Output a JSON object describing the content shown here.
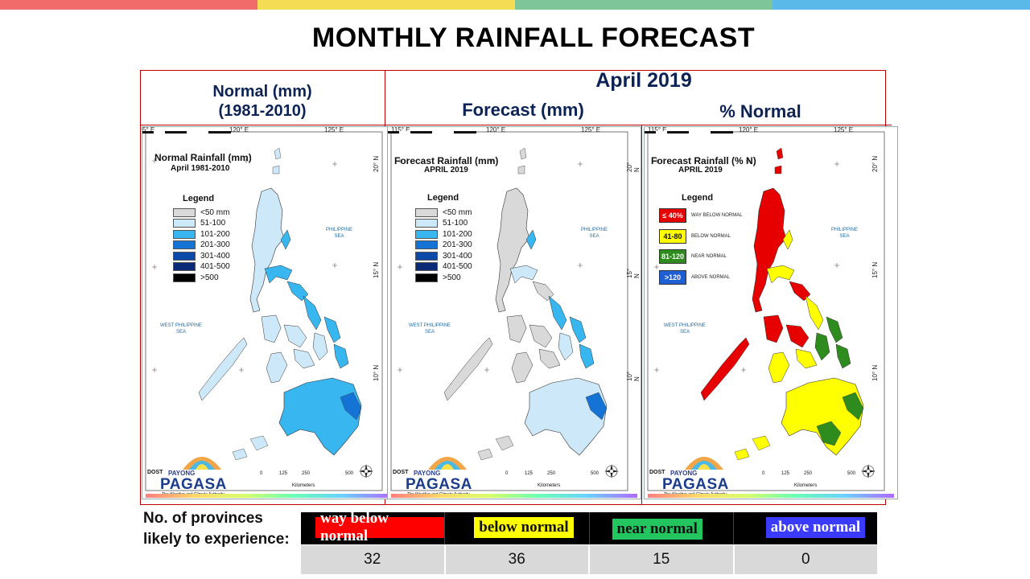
{
  "top_bar_colors": [
    "#f26b6b",
    "#f5dc55",
    "#7fc59a",
    "#5ab9e8"
  ],
  "title": "MONTHLY RAINFALL FORECAST",
  "headers": {
    "normal_line1": "Normal (mm)",
    "normal_line2": "(1981-2010)",
    "month": "April 2019",
    "forecast": "Forecast (mm)",
    "percent_normal": "% Normal"
  },
  "grid_ticks": {
    "lon": [
      "115° E",
      "120° E",
      "125° E"
    ],
    "lat": [
      "20° N",
      "15° N",
      "10° N"
    ]
  },
  "seas": {
    "philippine_sea_1": "PHILIPPINE",
    "philippine_sea_2": "SEA",
    "west_philippine_sea_1": "WEST PHILIPPINE",
    "west_philippine_sea_2": "SEA"
  },
  "maps": {
    "normal": {
      "title": "Normal Rainfall (mm)",
      "subtitle": "April 1981-2010",
      "first_lon_tick": "5° E"
    },
    "forecast": {
      "title": "Forecast Rainfall (mm)",
      "subtitle": "APRIL 2019"
    },
    "percent": {
      "title": "Forecast Rainfall (% N)",
      "subtitle": "APRIL 2019"
    }
  },
  "legend": {
    "title": "Legend",
    "items": [
      {
        "label": "<50 mm",
        "color": "#d9d9d9"
      },
      {
        "label": "51-100",
        "color": "#cde8f8"
      },
      {
        "label": "101-200",
        "color": "#38b6ef"
      },
      {
        "label": "201-300",
        "color": "#1673d6"
      },
      {
        "label": "301-400",
        "color": "#0b4aa8"
      },
      {
        "label": "401-500",
        "color": "#0a2a78"
      },
      {
        "label": ">500",
        "color": "#000000"
      }
    ]
  },
  "pct_legend": {
    "title": "Legend",
    "items": [
      {
        "box": "≤ 40%",
        "label": "WAY BELOW NORMAL",
        "color": "#e60000",
        "text_color": "#ffffff"
      },
      {
        "box": "41-80",
        "label": "BELOW NORMAL",
        "color": "#ffff00",
        "text_color": "#111111"
      },
      {
        "box": "81-120",
        "label": "NEAR NORMAL",
        "color": "#2e8b1e",
        "text_color": "#ffffff"
      },
      {
        "box": ">120",
        "label": "ABOVE NORMAL",
        "color": "#1f5fd6",
        "text_color": "#ffffff"
      }
    ]
  },
  "logo": {
    "dost": "DOST",
    "payong": "PAYONG",
    "pagasa": "PAGASA",
    "tagline": "The Weather and Climate Authority"
  },
  "scale": {
    "ticks": [
      "0",
      "125",
      "250",
      "500"
    ],
    "unit": "Kilometers"
  },
  "provinces": {
    "label": "No. of provinces likely to experience:",
    "categories": [
      {
        "name": "way below normal",
        "bg": "#ff0000",
        "fg": "#ffffff",
        "count": "32"
      },
      {
        "name": "below normal",
        "bg": "#ffff00",
        "fg": "#111111",
        "count": "36"
      },
      {
        "name": "near normal",
        "bg": "#22c55e",
        "fg": "#111111",
        "count": "15"
      },
      {
        "name": "above normal",
        "bg": "#3b3bff",
        "fg": "#ffffff",
        "count": "0"
      }
    ]
  }
}
